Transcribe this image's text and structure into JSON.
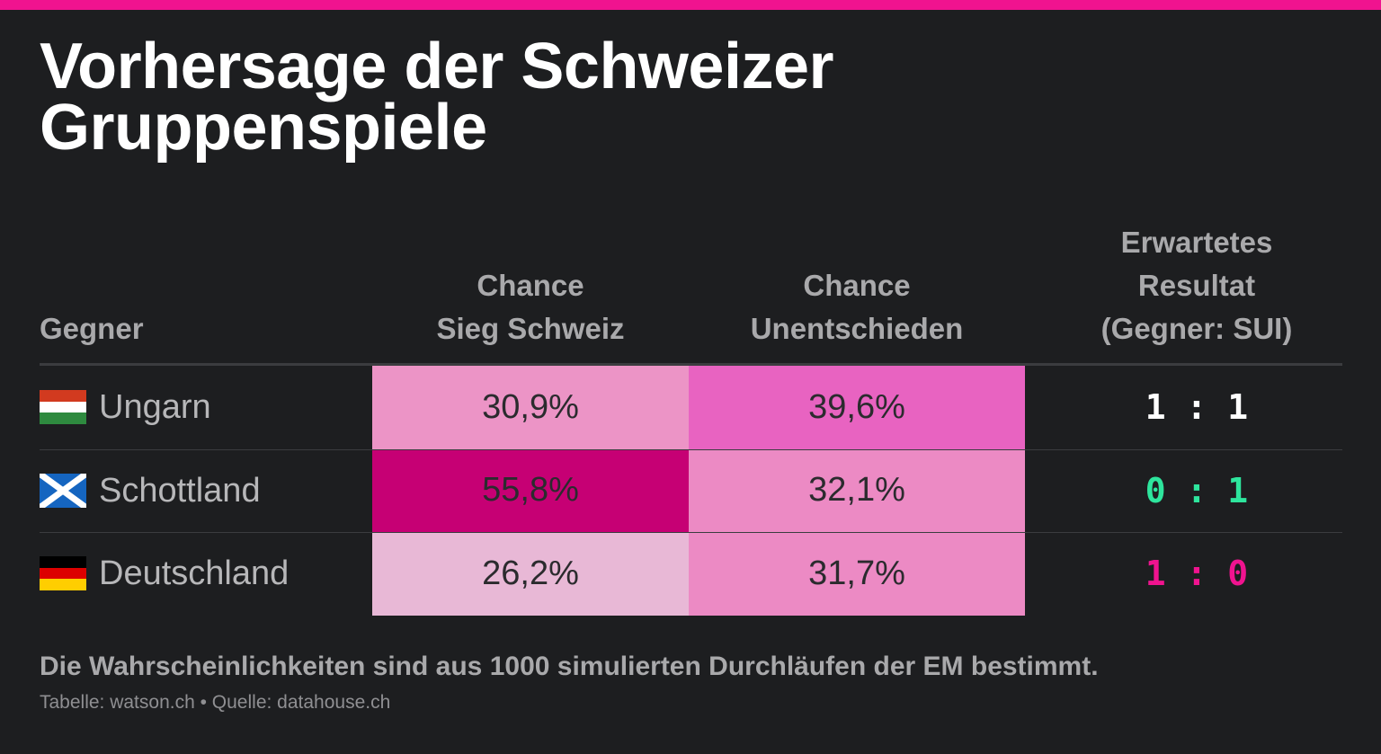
{
  "colors": {
    "accent_bar": "#f0138f",
    "result_draw": "#ffffff",
    "result_loss": "#2ee59d",
    "result_win": "#f0138f"
  },
  "title": {
    "line1": "Vorhersage der Schweizer",
    "line2": "Gruppenspiele"
  },
  "table": {
    "headers": {
      "gegner": "Gegner",
      "sieg": [
        "Chance",
        "Sieg Schweiz"
      ],
      "unentschieden": [
        "Chance",
        "Unentschieden"
      ],
      "resultat": [
        "Erwartetes",
        "Resultat",
        "(Gegner: SUI)"
      ]
    }
  },
  "chart_data": {
    "type": "table",
    "columns": [
      "Gegner",
      "Chance Sieg Schweiz",
      "Chance Unentschieden",
      "Erwartetes Resultat (Gegner: SUI)"
    ],
    "rows": [
      {
        "opponent": "Ungarn",
        "flag": "flag-hungary-icon",
        "win": 30.9,
        "win_label": "30,9%",
        "draw": 39.6,
        "draw_label": "39,6%",
        "result": "1 : 1",
        "win_color": "#ec94c6",
        "draw_color": "#e863c1",
        "result_color": "#ffffff"
      },
      {
        "opponent": "Schottland",
        "flag": "flag-scotland-icon",
        "win": 55.8,
        "win_label": "55,8%",
        "draw": 32.1,
        "draw_label": "32,1%",
        "result": "0 : 1",
        "win_color": "#c60074",
        "draw_color": "#ec8ac4",
        "result_color": "#2ee59d"
      },
      {
        "opponent": "Deutschland",
        "flag": "flag-germany-icon",
        "win": 26.2,
        "win_label": "26,2%",
        "draw": 31.7,
        "draw_label": "31,7%",
        "result": "1 : 0",
        "win_color": "#e8b8d6",
        "draw_color": "#ec8ac4",
        "result_color": "#f0138f"
      }
    ]
  },
  "footer": {
    "note": "Die Wahrscheinlichkeiten sind aus 1000 simulierten Durchläufen der EM bestimmt.",
    "source": "Tabelle: watson.ch • Quelle: datahouse.ch"
  }
}
